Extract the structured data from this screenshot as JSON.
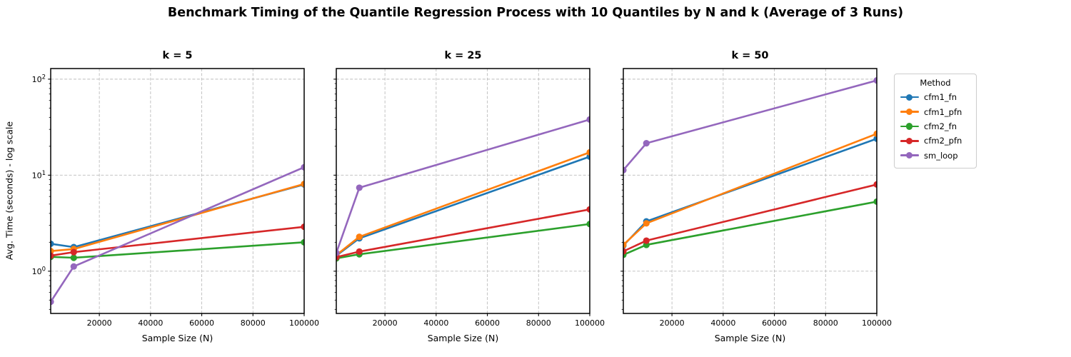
{
  "figure_title": "Benchmark Timing of the Quantile Regression Process with 10 Quantiles by N and k (Average of 3 Runs)",
  "legend": {
    "title": "Method",
    "entries": [
      {
        "label": "cfm1_fn",
        "color": "#1f77b4"
      },
      {
        "label": "cfm1_pfn",
        "color": "#ff7f0e"
      },
      {
        "label": "cfm2_fn",
        "color": "#2ca02c"
      },
      {
        "label": "cfm2_pfn",
        "color": "#d62728"
      },
      {
        "label": "sm_loop",
        "color": "#9467bd"
      }
    ]
  },
  "chart_data": [
    {
      "type": "line",
      "title": "k = 5",
      "xlabel": "Sample Size (N)",
      "ylabel": "Avg. Time (seconds) - log scale",
      "yscale": "log",
      "grid": true,
      "x": [
        1000,
        10000,
        100000
      ],
      "xlim": [
        1000,
        100000
      ],
      "ylim": [
        0.363,
        129
      ],
      "xticks": [
        20000,
        40000,
        60000,
        80000,
        100000
      ],
      "yticks": [
        1,
        10,
        100
      ],
      "ytick_labels": [
        "10^0",
        "10^1",
        "10^2"
      ],
      "series": [
        {
          "name": "cfm1_fn",
          "color": "#1f77b4",
          "values": [
            1.93,
            1.78,
            8.0
          ]
        },
        {
          "name": "cfm1_pfn",
          "color": "#ff7f0e",
          "values": [
            1.62,
            1.7,
            8.1
          ]
        },
        {
          "name": "cfm2_fn",
          "color": "#2ca02c",
          "values": [
            1.41,
            1.38,
            2.0
          ]
        },
        {
          "name": "cfm2_pfn",
          "color": "#d62728",
          "values": [
            1.45,
            1.58,
            2.9
          ]
        },
        {
          "name": "sm_loop",
          "color": "#9467bd",
          "values": [
            0.48,
            1.12,
            12.1
          ]
        }
      ]
    },
    {
      "type": "line",
      "title": "k = 25",
      "xlabel": "Sample Size (N)",
      "ylabel": "",
      "yscale": "log",
      "grid": true,
      "x": [
        1000,
        10000,
        100000
      ],
      "xlim": [
        1000,
        100000
      ],
      "ylim": [
        0.363,
        129
      ],
      "xticks": [
        20000,
        40000,
        60000,
        80000,
        100000
      ],
      "yticks": [
        1,
        10,
        100
      ],
      "ytick_labels": [
        "10^0",
        "10^1",
        "10^2"
      ],
      "series": [
        {
          "name": "cfm1_fn",
          "color": "#1f77b4",
          "values": [
            1.45,
            2.2,
            15.6
          ]
        },
        {
          "name": "cfm1_pfn",
          "color": "#ff7f0e",
          "values": [
            1.47,
            2.28,
            17.3
          ]
        },
        {
          "name": "cfm2_fn",
          "color": "#2ca02c",
          "values": [
            1.36,
            1.5,
            3.1
          ]
        },
        {
          "name": "cfm2_pfn",
          "color": "#d62728",
          "values": [
            1.4,
            1.6,
            4.4
          ]
        },
        {
          "name": "sm_loop",
          "color": "#9467bd",
          "values": [
            1.55,
            7.4,
            38.0
          ]
        }
      ]
    },
    {
      "type": "line",
      "title": "k = 50",
      "xlabel": "Sample Size (N)",
      "ylabel": "",
      "yscale": "log",
      "grid": true,
      "x": [
        1000,
        10000,
        100000
      ],
      "xlim": [
        1000,
        100000
      ],
      "ylim": [
        0.363,
        129
      ],
      "xticks": [
        20000,
        40000,
        60000,
        80000,
        100000
      ],
      "yticks": [
        1,
        10,
        100
      ],
      "ytick_labels": [
        "10^0",
        "10^1",
        "10^2"
      ],
      "series": [
        {
          "name": "cfm1_fn",
          "color": "#1f77b4",
          "values": [
            1.85,
            3.3,
            24.0
          ]
        },
        {
          "name": "cfm1_pfn",
          "color": "#ff7f0e",
          "values": [
            1.88,
            3.15,
            27.0
          ]
        },
        {
          "name": "cfm2_fn",
          "color": "#2ca02c",
          "values": [
            1.48,
            1.88,
            5.3
          ]
        },
        {
          "name": "cfm2_pfn",
          "color": "#d62728",
          "values": [
            1.61,
            2.08,
            8.0
          ]
        },
        {
          "name": "sm_loop",
          "color": "#9467bd",
          "values": [
            11.3,
            21.5,
            97.0
          ]
        }
      ]
    }
  ]
}
